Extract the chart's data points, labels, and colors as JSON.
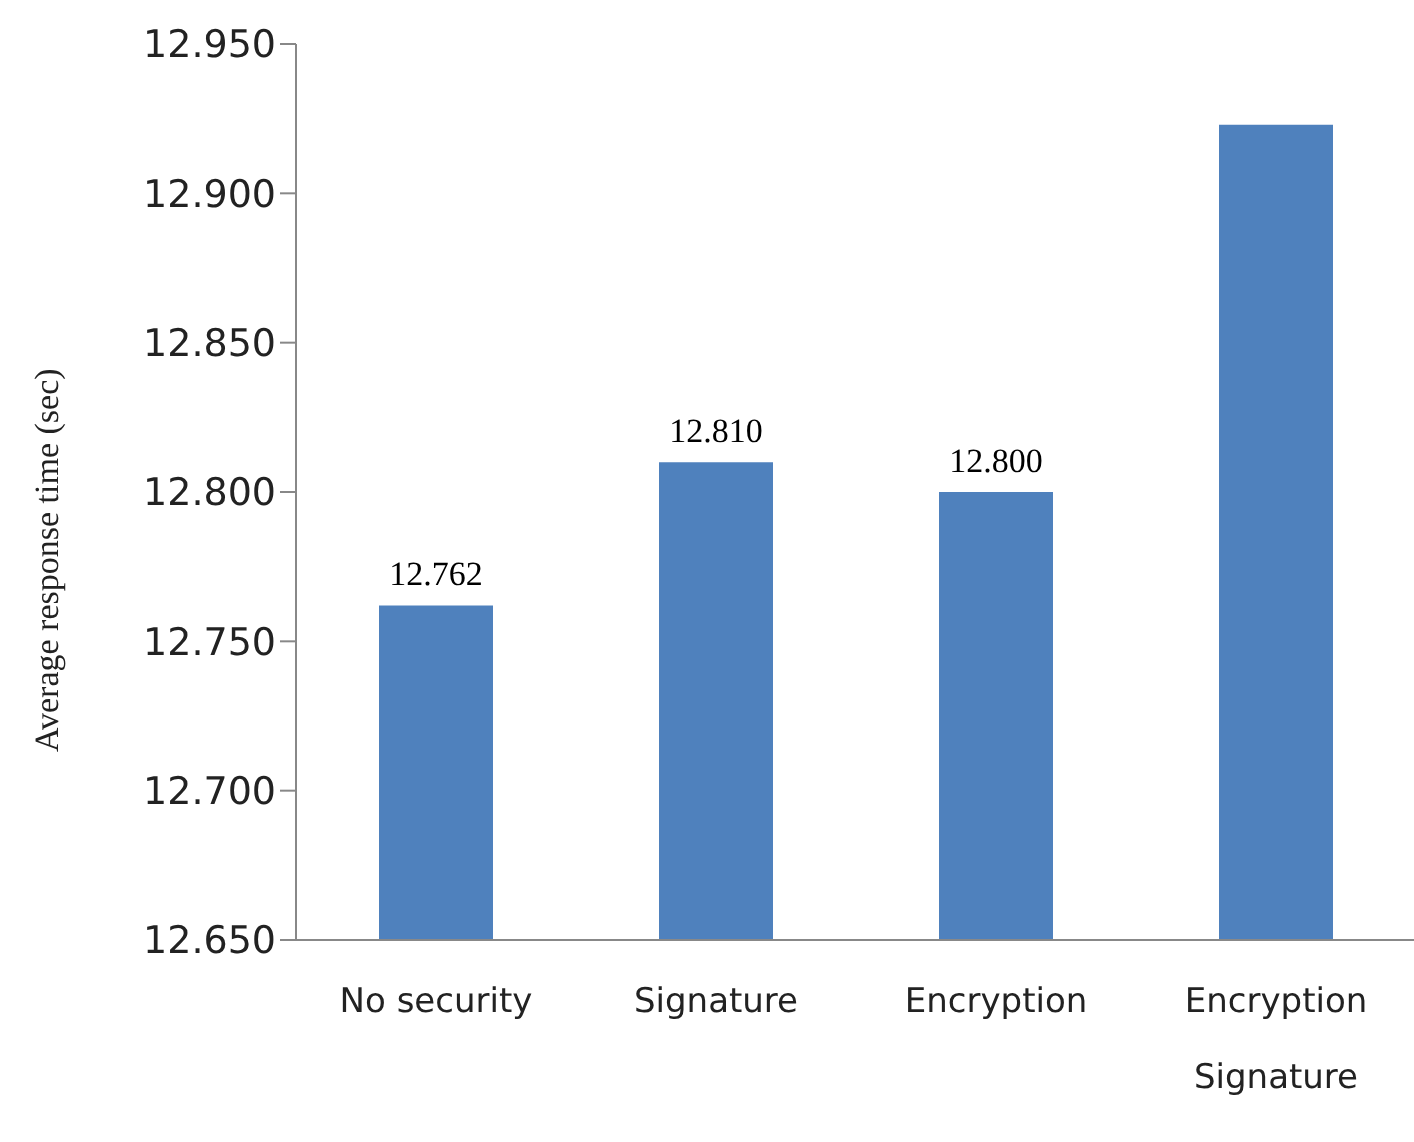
{
  "chart_data": {
    "type": "bar",
    "ylabel": "Average response time (sec)",
    "categories": [
      "No security",
      "Signature",
      "Encryption",
      "Encryption Signature"
    ],
    "values": [
      12.762,
      12.81,
      12.8,
      12.923
    ],
    "value_labels": [
      "12.762",
      "12.810",
      "12.800",
      null
    ],
    "color": "#4f81bd",
    "ylim": [
      12.65,
      12.95
    ],
    "yticks": [
      {
        "value": 12.65,
        "label": "12.650"
      },
      {
        "value": 12.7,
        "label": "12.700"
      },
      {
        "value": 12.75,
        "label": "12.750"
      },
      {
        "value": 12.8,
        "label": "12.800"
      },
      {
        "value": 12.85,
        "label": "12.850"
      },
      {
        "value": 12.9,
        "label": "12.900"
      },
      {
        "value": 12.95,
        "label": "12.950"
      }
    ],
    "grid": false,
    "legend": false
  }
}
